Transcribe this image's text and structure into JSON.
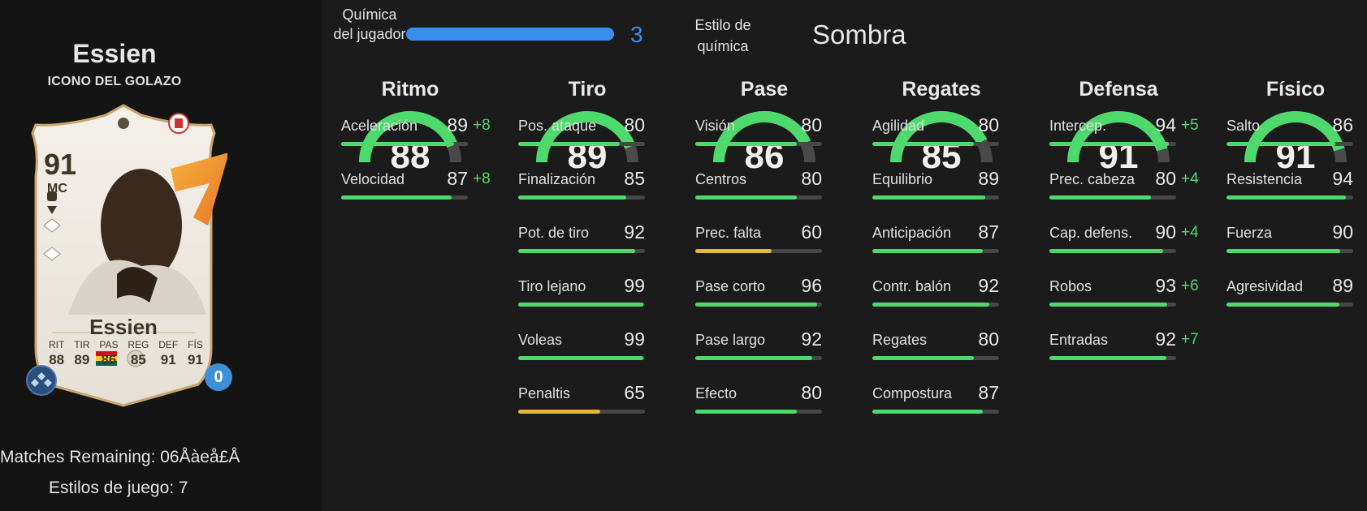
{
  "player": {
    "name": "Essien",
    "card_type": "ICONO DEL GOLAZO",
    "matches_remaining": "Matches Remaining: 06Åàeå£Å",
    "playstyles": "Estilos de juego: 7"
  },
  "card": {
    "rating": "91",
    "position": "MC",
    "name": "Essien",
    "chemistry_points": "0",
    "stats": [
      {
        "label": "RIT",
        "value": "88"
      },
      {
        "label": "TIR",
        "value": "89"
      },
      {
        "label": "PAS",
        "value": "86"
      },
      {
        "label": "REG",
        "value": "85"
      },
      {
        "label": "DEF",
        "value": "91"
      },
      {
        "label": "FÍS",
        "value": "91"
      }
    ],
    "icons": [
      "card-stats-icon",
      "playstyle-icon",
      "flag-ghana-icon",
      "icon-badge-icon",
      "chemistry-style-icon"
    ]
  },
  "chemistry": {
    "label": "Química del jugador",
    "value": "3",
    "fraction": 1.0,
    "style_label": "Estilo de química",
    "style_value": "Sombra"
  },
  "colors": {
    "accent_blue": "#3a8ef0",
    "bar_green": "#4ed96c",
    "bar_yellow": "#e6b73c",
    "boost_green": "#50d870"
  },
  "categories": [
    {
      "title": "Ritmo",
      "value": "88",
      "attrs": [
        {
          "name": "Aceleración",
          "value": "89",
          "boost": "+8"
        },
        {
          "name": "Velocidad",
          "value": "87",
          "boost": "+8"
        }
      ]
    },
    {
      "title": "Tiro",
      "value": "89",
      "attrs": [
        {
          "name": "Pos. ataque",
          "value": "80",
          "boost": ""
        },
        {
          "name": "Finalización",
          "value": "85",
          "boost": ""
        },
        {
          "name": "Pot. de tiro",
          "value": "92",
          "boost": ""
        },
        {
          "name": "Tiro lejano",
          "value": "99",
          "boost": ""
        },
        {
          "name": "Voleas",
          "value": "99",
          "boost": ""
        },
        {
          "name": "Penaltis",
          "value": "65",
          "boost": ""
        }
      ]
    },
    {
      "title": "Pase",
      "value": "86",
      "attrs": [
        {
          "name": "Visión",
          "value": "80",
          "boost": ""
        },
        {
          "name": "Centros",
          "value": "80",
          "boost": ""
        },
        {
          "name": "Prec. falta",
          "value": "60",
          "boost": ""
        },
        {
          "name": "Pase corto",
          "value": "96",
          "boost": ""
        },
        {
          "name": "Pase largo",
          "value": "92",
          "boost": ""
        },
        {
          "name": "Efecto",
          "value": "80",
          "boost": ""
        }
      ]
    },
    {
      "title": "Regates",
      "value": "85",
      "attrs": [
        {
          "name": "Agilidad",
          "value": "80",
          "boost": ""
        },
        {
          "name": "Equilibrio",
          "value": "89",
          "boost": ""
        },
        {
          "name": "Anticipación",
          "value": "87",
          "boost": ""
        },
        {
          "name": "Contr. balón",
          "value": "92",
          "boost": ""
        },
        {
          "name": "Regates",
          "value": "80",
          "boost": ""
        },
        {
          "name": "Compostura",
          "value": "87",
          "boost": ""
        }
      ]
    },
    {
      "title": "Defensa",
      "value": "91",
      "attrs": [
        {
          "name": "Intercep.",
          "value": "94",
          "boost": "+5"
        },
        {
          "name": "Prec. cabeza",
          "value": "80",
          "boost": "+4"
        },
        {
          "name": "Cap. defens.",
          "value": "90",
          "boost": "+4"
        },
        {
          "name": "Robos",
          "value": "93",
          "boost": "+6"
        },
        {
          "name": "Entradas",
          "value": "92",
          "boost": "+7"
        }
      ]
    },
    {
      "title": "Físico",
      "value": "91",
      "attrs": [
        {
          "name": "Salto",
          "value": "86",
          "boost": ""
        },
        {
          "name": "Resistencia",
          "value": "94",
          "boost": ""
        },
        {
          "name": "Fuerza",
          "value": "90",
          "boost": ""
        },
        {
          "name": "Agresividad",
          "value": "89",
          "boost": ""
        }
      ]
    }
  ]
}
